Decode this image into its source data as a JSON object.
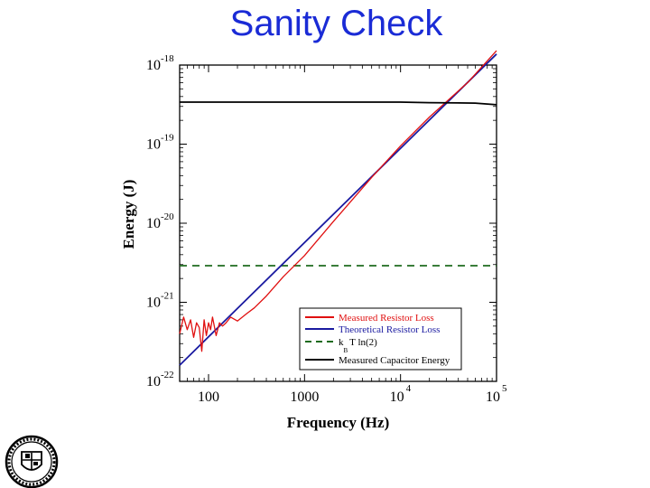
{
  "slide": {
    "title": "Sanity Check"
  },
  "chart_data": {
    "type": "line",
    "title": "",
    "xlabel": "Frequency (Hz)",
    "ylabel": "Energy (J)",
    "xscale": "log",
    "yscale": "log",
    "xlim": [
      50,
      100000
    ],
    "ylim": [
      1e-22,
      1e-18
    ],
    "x_ticks": [
      {
        "value": 100,
        "base": "100",
        "exp": ""
      },
      {
        "value": 1000,
        "base": "1000",
        "exp": ""
      },
      {
        "value": 10000,
        "base": "10",
        "exp": "4"
      },
      {
        "value": 100000,
        "base": "10",
        "exp": "5"
      }
    ],
    "y_ticks": [
      {
        "value": 1e-22,
        "base": "10",
        "exp": "-22"
      },
      {
        "value": 1e-21,
        "base": "10",
        "exp": "-21"
      },
      {
        "value": 1e-20,
        "base": "10",
        "exp": "-20"
      },
      {
        "value": 1e-19,
        "base": "10",
        "exp": "-19"
      },
      {
        "value": 1e-18,
        "base": "10",
        "exp": "-18"
      }
    ],
    "legend_position": "bottom-right",
    "series": [
      {
        "name": "Measured Resistor Loss",
        "color": "#e01010",
        "dash": "solid",
        "x": [
          50,
          55,
          60,
          65,
          70,
          75,
          80,
          85,
          90,
          95,
          100,
          105,
          110,
          120,
          130,
          140,
          150,
          170,
          200,
          250,
          300,
          400,
          600,
          1000,
          2000,
          5000,
          10000,
          20000,
          50000,
          100000
        ],
        "y": [
          4e-22,
          6.5e-22,
          4.5e-22,
          6e-22,
          3.6e-22,
          5.5e-22,
          4.8e-22,
          2.4e-22,
          6e-22,
          3.8e-22,
          5.5e-22,
          4.5e-22,
          6.5e-22,
          3.8e-22,
          5.5e-22,
          5e-22,
          5.4e-22,
          6.5e-22,
          5.8e-22,
          7.2e-22,
          8.5e-22,
          1.2e-21,
          2.1e-21,
          3.9e-21,
          1.05e-20,
          3.8e-20,
          9.5e-20,
          2.2e-19,
          6e-19,
          1.52e-18
        ]
      },
      {
        "name": "Theoretical Resistor Loss",
        "color": "#1a1aa0",
        "dash": "solid",
        "x": [
          50,
          100000
        ],
        "y": [
          1.6e-22,
          1.38e-18
        ]
      },
      {
        "name": "kBT ln(2)",
        "label_main": "k",
        "label_sub": "B",
        "label_rest": "T ln(2)",
        "color": "#1f6b1f",
        "dash": "8,6",
        "x": [
          50,
          100000
        ],
        "y": [
          2.9e-21,
          2.9e-21
        ]
      },
      {
        "name": "Measured Capacitor Energy",
        "color": "#000000",
        "dash": "solid",
        "x": [
          50,
          10000,
          20000,
          40000,
          60000,
          100000
        ],
        "y": [
          3.4e-19,
          3.4e-19,
          3.35e-19,
          3.32e-19,
          3.3e-19,
          3.15e-19
        ]
      }
    ]
  }
}
